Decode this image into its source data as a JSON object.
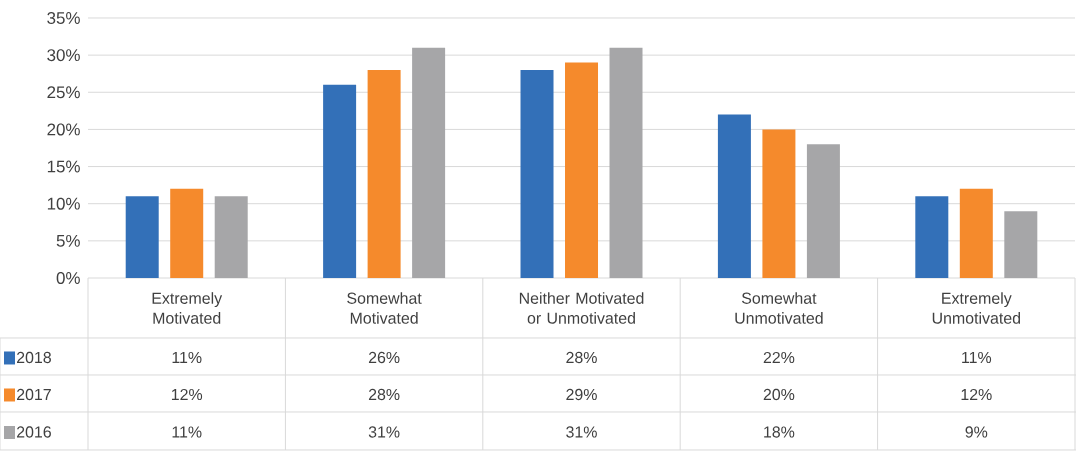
{
  "chart_data": {
    "type": "bar",
    "categories": [
      "Extremely Motivated",
      "Somewhat Motivated",
      "Neither Motivated or Unmotivated",
      "Somewhat Unmotivated",
      "Extremely Unmotivated"
    ],
    "series": [
      {
        "name": "2018",
        "color": "#3370b8",
        "values": [
          11,
          26,
          28,
          22,
          11
        ],
        "value_labels": [
          "11%",
          "26%",
          "28%",
          "22%",
          "11%"
        ]
      },
      {
        "name": "2017",
        "color": "#f58a2c",
        "values": [
          12,
          28,
          29,
          20,
          12
        ],
        "value_labels": [
          "12%",
          "28%",
          "29%",
          "20%",
          "12%"
        ]
      },
      {
        "name": "2016",
        "color": "#a6a6a8",
        "values": [
          11,
          31,
          31,
          18,
          9
        ],
        "value_labels": [
          "11%",
          "31%",
          "31%",
          "18%",
          "9%"
        ]
      }
    ],
    "ylim": [
      0,
      35
    ],
    "yticks": [
      {
        "value": 0,
        "label": "0%"
      },
      {
        "value": 5,
        "label": "5%"
      },
      {
        "value": 10,
        "label": "10%"
      },
      {
        "value": 15,
        "label": "15%"
      },
      {
        "value": 20,
        "label": "20%"
      },
      {
        "value": 25,
        "label": "25%"
      },
      {
        "value": 30,
        "label": "30%"
      },
      {
        "value": 35,
        "label": "35%"
      }
    ],
    "grid": "y",
    "legend": "bottom"
  }
}
